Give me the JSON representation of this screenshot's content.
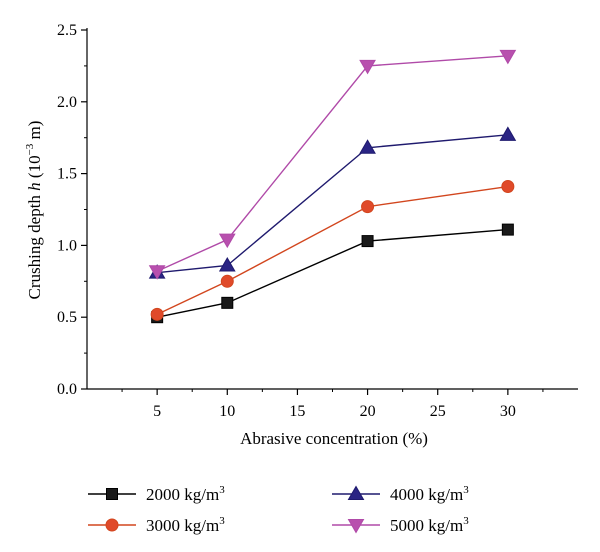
{
  "chart_data": {
    "type": "line",
    "xlabel": "Abrasive concentration (%)",
    "ylabel_pre": "Crushing depth ",
    "ylabel_var": "h",
    "ylabel_unit_open": " (10",
    "ylabel_exp": "−3",
    "ylabel_unit_close": " m)",
    "xlim": [
      0,
      35
    ],
    "ylim": [
      0,
      2.5
    ],
    "xticks": [
      "5",
      "10",
      "15",
      "20",
      "25",
      "30"
    ],
    "yticks": [
      "0.0",
      "0.5",
      "1.0",
      "1.5",
      "2.0",
      "2.5"
    ],
    "x": [
      5,
      10,
      20,
      30
    ],
    "series": [
      {
        "name_base": "2000 kg/m",
        "name_sup": "3",
        "values": [
          0.5,
          0.6,
          1.03,
          1.11
        ],
        "color": "#000000",
        "marker_fill": "#1a1a1a",
        "marker": "square"
      },
      {
        "name_base": "3000 kg/m",
        "name_sup": "3",
        "values": [
          0.52,
          0.75,
          1.27,
          1.41
        ],
        "color": "#d2461e",
        "marker_fill": "#e04a2a",
        "marker": "circle"
      },
      {
        "name_base": "4000 kg/m",
        "name_sup": "3",
        "values": [
          0.81,
          0.86,
          1.68,
          1.77
        ],
        "color": "#1f1a6e",
        "marker_fill": "#2a2484",
        "marker": "triangle-up"
      },
      {
        "name_base": "5000 kg/m",
        "name_sup": "3",
        "values": [
          0.82,
          1.04,
          2.25,
          2.32
        ],
        "color": "#b04aa8",
        "marker_fill": "#b850ae",
        "marker": "triangle-down"
      }
    ],
    "grid": false,
    "legend_position": "bottom"
  }
}
